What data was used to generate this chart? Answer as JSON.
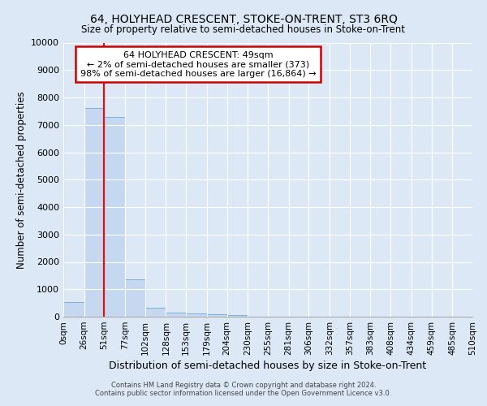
{
  "title": "64, HOLYHEAD CRESCENT, STOKE-ON-TRENT, ST3 6RQ",
  "subtitle": "Size of property relative to semi-detached houses in Stoke-on-Trent",
  "xlabel": "Distribution of semi-detached houses by size in Stoke-on-Trent",
  "ylabel": "Number of semi-detached properties",
  "footer_line1": "Contains HM Land Registry data © Crown copyright and database right 2024.",
  "footer_line2": "Contains public sector information licensed under the Open Government Licence v3.0.",
  "annotation_title": "64 HOLYHEAD CRESCENT: 49sqm",
  "annotation_line1": "← 2% of semi-detached houses are smaller (373)",
  "annotation_line2": "98% of semi-detached houses are larger (16,864) →",
  "property_size": 49,
  "bin_edges": [
    0,
    26,
    51,
    77,
    102,
    128,
    153,
    179,
    204,
    230,
    255,
    281,
    306,
    332,
    357,
    383,
    408,
    434,
    459,
    485,
    510
  ],
  "bar_values": [
    530,
    7620,
    7280,
    1350,
    320,
    160,
    115,
    90,
    70,
    0,
    0,
    0,
    0,
    0,
    0,
    0,
    0,
    0,
    0,
    0
  ],
  "bar_color": "#c5d8f0",
  "bar_edge_color": "#6fa8d8",
  "red_line_x": 51,
  "annotation_box_facecolor": "#ffffff",
  "annotation_box_edgecolor": "#cc0000",
  "fig_facecolor": "#dce8f5",
  "ax_facecolor": "#dce8f5",
  "grid_color": "#ffffff",
  "ylim": [
    0,
    10000
  ],
  "yticks": [
    0,
    1000,
    2000,
    3000,
    4000,
    5000,
    6000,
    7000,
    8000,
    9000,
    10000
  ]
}
